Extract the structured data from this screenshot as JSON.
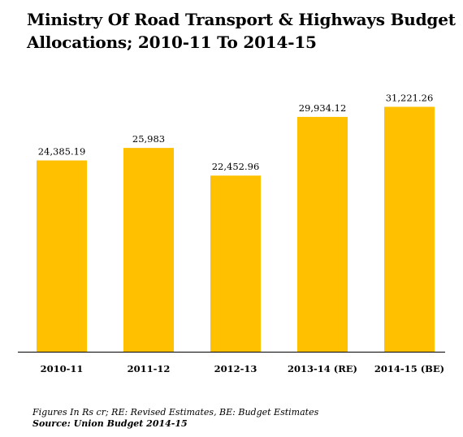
{
  "title_line1": "Ministry Of Road Transport & Highways Budget",
  "title_line2": "Allocations; 2010-11 To 2014-15",
  "footnote": "Figures In Rs cr; RE: Revised Estimates, BE: Budget Estimates",
  "source": "Source: Union Budget 2014-15",
  "colors": {
    "bar": "#FFC000",
    "axis": "#000000"
  },
  "chart_data": {
    "type": "bar",
    "title": "Ministry Of Road Transport & Highways Budget Allocations; 2010-11 To 2014-15",
    "categories": [
      "2010-11",
      "2011-12",
      "2012-13",
      "2013-14 (RE)",
      "2014-15 (BE)"
    ],
    "values": [
      24385.19,
      25983,
      22452.96,
      29934.12,
      31221.26
    ],
    "value_labels": [
      "24,385.19",
      "25,983",
      "22,452.96",
      "29,934.12",
      "31,221.26"
    ],
    "xlabel": "",
    "ylabel": "",
    "ylim": [
      0,
      35000
    ],
    "grid": false,
    "legend": "none"
  }
}
